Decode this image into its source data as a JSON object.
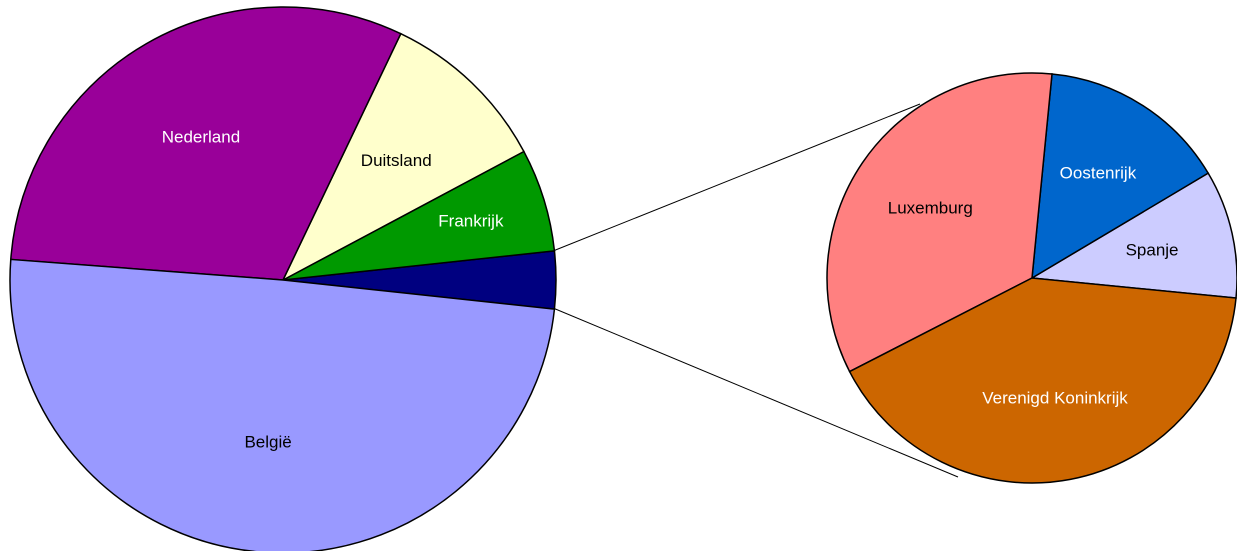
{
  "chart_data": [
    {
      "type": "pie",
      "categories": [
        null,
        "Frankrijk",
        "Duitsland",
        "Nederland",
        "België"
      ],
      "values": [
        3.4,
        6.1,
        10.1,
        30.9,
        49.5
      ],
      "colors": [
        "#000080",
        "#009900",
        "#ffffcc",
        "#990099",
        "#9999ff"
      ]
    },
    {
      "type": "pie",
      "categories": [
        "Spanje",
        "Oostenrijk",
        "Luxemburg",
        "Verenigd Koninkrijk"
      ],
      "values": [
        10.1,
        14.9,
        34.1,
        40.9
      ],
      "colors": [
        "#ccccff",
        "#0066cc",
        "#ff8080",
        "#cc6600"
      ]
    }
  ]
}
